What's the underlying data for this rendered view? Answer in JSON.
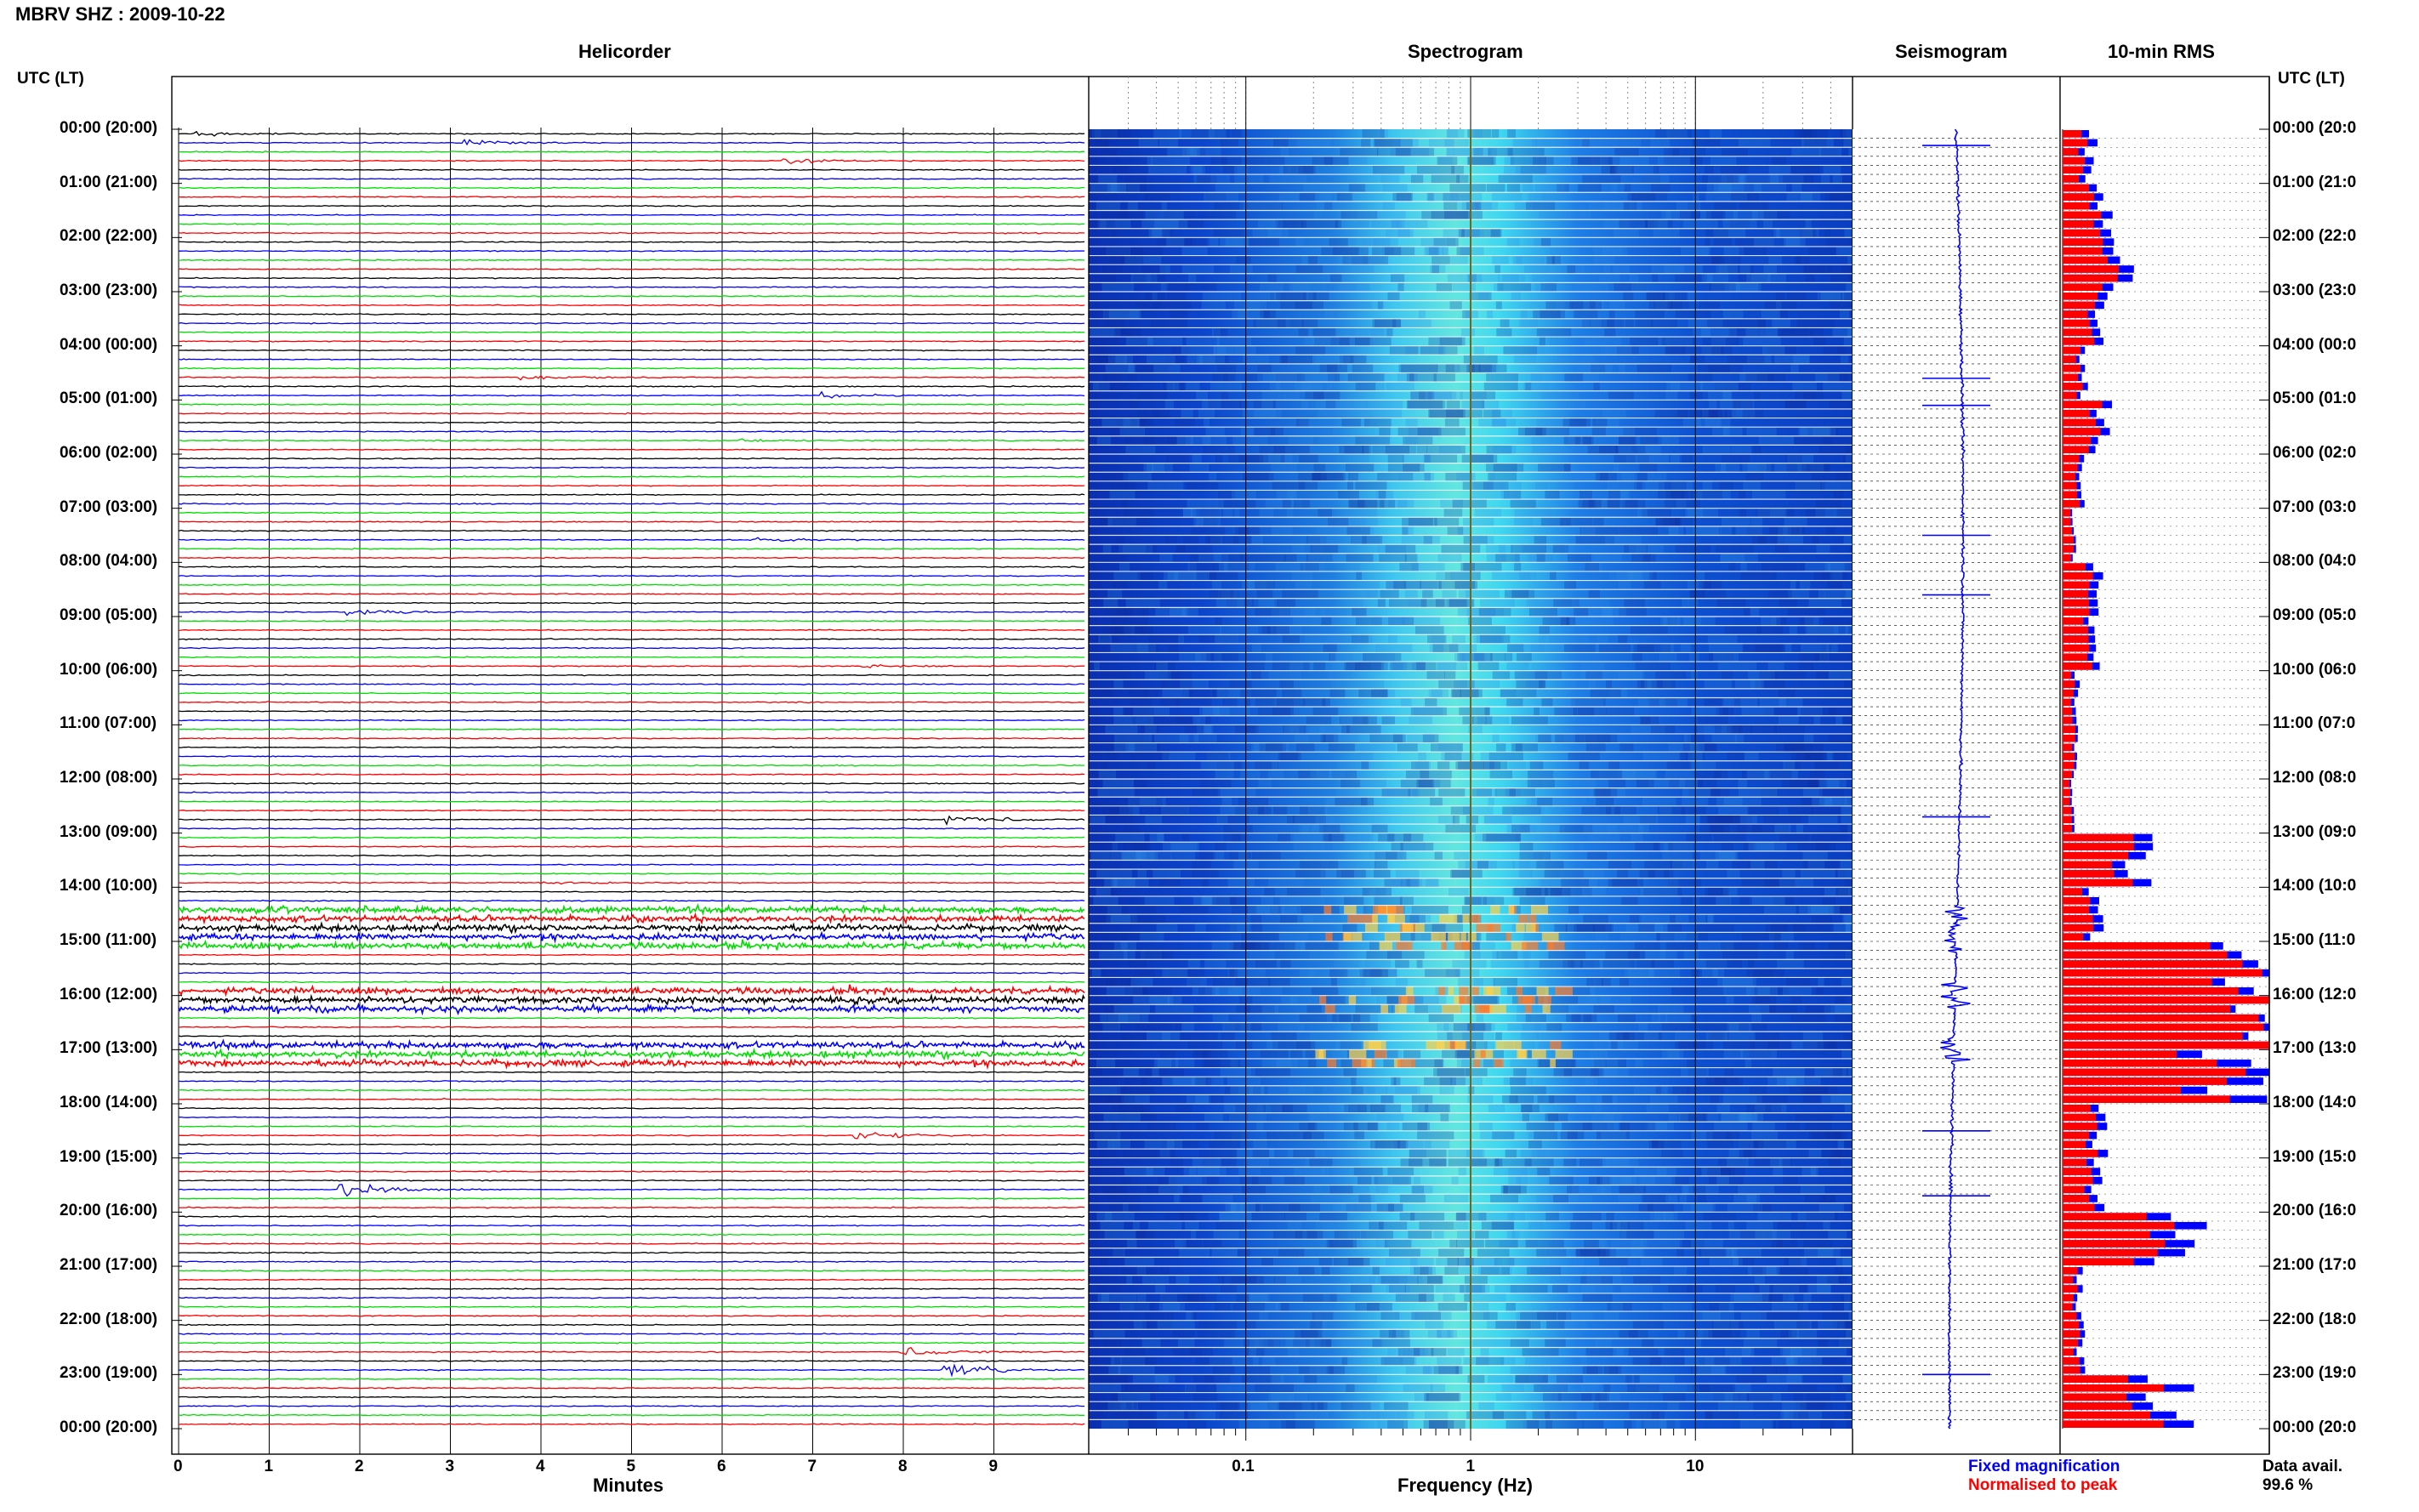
{
  "window_title": "MBRV SHZ : 2009-10-22",
  "panels": {
    "helicorder": "Helicorder",
    "spectrogram": "Spectrogram",
    "seismogram": "Seismogram",
    "rms": "10-min RMS"
  },
  "axis_header_left": "UTC (LT)",
  "axis_header_right": "UTC (LT)",
  "time_labels": [
    "00:00 (20:00)",
    "01:00 (21:00)",
    "02:00 (22:00)",
    "03:00 (23:00)",
    "04:00 (00:00)",
    "05:00 (01:00)",
    "06:00 (02:00)",
    "07:00 (03:00)",
    "08:00 (04:00)",
    "09:00 (05:00)",
    "10:00 (06:00)",
    "11:00 (07:00)",
    "12:00 (08:00)",
    "13:00 (09:00)",
    "14:00 (10:00)",
    "15:00 (11:00)",
    "16:00 (12:00)",
    "17:00 (13:00)",
    "18:00 (14:00)",
    "19:00 (15:00)",
    "20:00 (16:00)",
    "21:00 (17:00)",
    "22:00 (18:00)",
    "23:00 (19:00)",
    "00:00 (20:00)"
  ],
  "time_labels_right": [
    "00:00 (20:0",
    "01:00 (21:0",
    "02:00 (22:0",
    "03:00 (23:0",
    "04:00 (00:0",
    "05:00 (01:0",
    "06:00 (02:0",
    "07:00 (03:0",
    "08:00 (04:0",
    "09:00 (05:0",
    "10:00 (06:0",
    "11:00 (07:0",
    "12:00 (08:0",
    "13:00 (09:0",
    "14:00 (10:0",
    "15:00 (11:0",
    "16:00 (12:0",
    "17:00 (13:0",
    "18:00 (14:0",
    "19:00 (15:0",
    "20:00 (16:0",
    "21:00 (17:0",
    "22:00 (18:0",
    "23:00 (19:0",
    "00:00 (20:0"
  ],
  "legend": {
    "fixed": "Fixed magnification",
    "normalised": "Normalised to peak",
    "data_avail_label": "Data avail.",
    "data_avail_value": "99.6 %"
  },
  "colors": {
    "trace_cycle": [
      "#000000",
      "#0000ff",
      "#00dd00",
      "#ff0000"
    ],
    "rms_fixed": "#0000ff",
    "rms_normalised": "#ff0000",
    "seismogram": "#0000ff",
    "spectrogram_background": "#0b3fc0"
  },
  "chart_data": {
    "type": "helicorder",
    "helicorder": {
      "xlabel": "Minutes",
      "xticks": [
        0,
        1,
        2,
        3,
        4,
        5,
        6,
        7,
        8,
        9
      ],
      "xlim": [
        0,
        10
      ],
      "rows_per_hour": 6,
      "hours": 24,
      "events": [
        {
          "hour": 0.0,
          "minute": 0.2,
          "amp": 0.5
        },
        {
          "hour": 0.17,
          "minute": 3.2,
          "amp": 0.7
        },
        {
          "hour": 0.5,
          "minute": 6.7,
          "amp": 0.6
        },
        {
          "hour": 4.5,
          "minute": 3.8,
          "amp": 0.5
        },
        {
          "hour": 4.83,
          "minute": 7.1,
          "amp": 0.9
        },
        {
          "hour": 5.67,
          "minute": 6.2,
          "amp": 0.4
        },
        {
          "hour": 7.5,
          "minute": 6.4,
          "amp": 0.5
        },
        {
          "hour": 8.83,
          "minute": 1.9,
          "amp": 0.7
        },
        {
          "hour": 9.83,
          "minute": 7.5,
          "amp": 0.4
        },
        {
          "hour": 12.67,
          "minute": 8.5,
          "amp": 1.3
        },
        {
          "hour": 13.83,
          "minute": 4.0,
          "amp": 0.5
        },
        {
          "hour": 18.5,
          "minute": 7.5,
          "amp": 1.2
        },
        {
          "hour": 19.5,
          "minute": 1.8,
          "amp": 1.4
        },
        {
          "hour": 22.5,
          "minute": 8.0,
          "amp": 1.0
        },
        {
          "hour": 22.83,
          "minute": 8.5,
          "amp": 1.4
        }
      ],
      "noisy_hours": [
        [
          14.3,
          15.1
        ],
        [
          15.8,
          16.2
        ],
        [
          16.7,
          17.2
        ]
      ]
    },
    "spectrogram": {
      "xlabel": "Frequency (Hz)",
      "xscale": "log",
      "xlim": [
        0.02,
        50
      ],
      "xticks": [
        0.1,
        1,
        10
      ],
      "xtick_labels": [
        "0.1",
        "1",
        "10"
      ],
      "peak_band_hz": [
        0.6,
        2.0
      ]
    },
    "seismogram": {
      "scale": "fixed magnification",
      "spikes_hour": [
        0.3,
        4.6,
        5.1,
        7.5,
        8.6,
        12.7,
        18.5,
        19.7,
        23.0
      ],
      "bursts_hour": [
        [
          14.3,
          15.2
        ],
        [
          15.8,
          16.3
        ],
        [
          16.8,
          17.3
        ]
      ]
    },
    "rms_10min": {
      "series": [
        {
          "name": "Fixed magnification",
          "color": "#0000ff"
        },
        {
          "name": "Normalised to peak",
          "color": "#ff0000"
        }
      ],
      "hourly_fixed": [
        0.14,
        0.22,
        0.28,
        0.18,
        0.1,
        0.2,
        0.09,
        0.06,
        0.16,
        0.15,
        0.07,
        0.06,
        0.05,
        0.38,
        0.16,
        1.0,
        0.98,
        0.88,
        0.18,
        0.17,
        0.58,
        0.08,
        0.09,
        0.52
      ],
      "hourly_normalised": [
        0.1,
        0.17,
        0.22,
        0.14,
        0.08,
        0.16,
        0.07,
        0.05,
        0.12,
        0.12,
        0.05,
        0.05,
        0.04,
        0.3,
        0.12,
        0.92,
        0.95,
        0.72,
        0.14,
        0.13,
        0.45,
        0.06,
        0.07,
        0.4
      ]
    }
  }
}
